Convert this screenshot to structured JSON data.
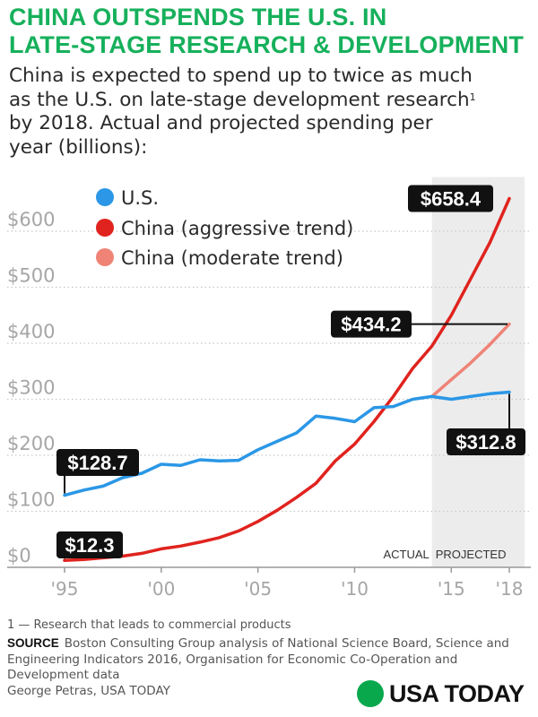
{
  "title_line1": "CHINA OUTSPENDS THE U.S. IN",
  "title_line2": "LATE-STAGE RESEARCH & DEVELOPMENT",
  "subtitle_line1": "China is expected to spend up to twice as much",
  "subtitle_line2": "as the U.S. on late-stage development research",
  "subtitle_sup": "1",
  "subtitle_line3": "by 2018. Actual and projected spending per",
  "subtitle_line4": "year (billions):",
  "chart_data": {
    "type": "line",
    "x": [
      1995,
      1996,
      1997,
      1998,
      1999,
      2000,
      2001,
      2002,
      2003,
      2004,
      2005,
      2006,
      2007,
      2008,
      2009,
      2010,
      2011,
      2012,
      2013,
      2014,
      2015,
      2016,
      2017,
      2018
    ],
    "xticks": [
      1995,
      2000,
      2005,
      2010,
      2015,
      2018
    ],
    "xtick_labels": [
      "'95",
      "'00",
      "'05",
      "'10",
      "'15",
      "'18"
    ],
    "yticks": [
      0,
      100,
      200,
      300,
      400,
      500,
      600
    ],
    "ytick_labels": [
      "$0",
      "$100",
      "$200",
      "$300",
      "$400",
      "$500",
      "$600"
    ],
    "ylim": [
      0,
      700
    ],
    "xlim": [
      1995,
      2018
    ],
    "projection_start": 2014,
    "region_labels": [
      "ACTUAL",
      "PROJECTED"
    ],
    "legend_position": "top-left",
    "grid": "dotted horizontal",
    "series": [
      {
        "name": "U.S.",
        "color": "#2b97e6",
        "x": [
          1995,
          1996,
          1997,
          1998,
          1999,
          2000,
          2001,
          2002,
          2003,
          2004,
          2005,
          2006,
          2007,
          2008,
          2009,
          2010,
          2011,
          2012,
          2013,
          2014,
          2015,
          2016,
          2017,
          2018
        ],
        "values": [
          128.7,
          138,
          145,
          160,
          168,
          184,
          182,
          192,
          190,
          191,
          210,
          225,
          240,
          270,
          266,
          260,
          285,
          287,
          300,
          305,
          300,
          305,
          310,
          312.8
        ]
      },
      {
        "name": "China (aggressive trend)",
        "color": "#e0231e",
        "x": [
          1995,
          1996,
          1997,
          1998,
          1999,
          2000,
          2001,
          2002,
          2003,
          2004,
          2005,
          2006,
          2007,
          2008,
          2009,
          2010,
          2011,
          2012,
          2013,
          2014,
          2015,
          2016,
          2017,
          2018
        ],
        "values": [
          12.3,
          14,
          17,
          20,
          25,
          33,
          38,
          45,
          53,
          65,
          82,
          102,
          125,
          150,
          190,
          220,
          260,
          305,
          355,
          395,
          450,
          515,
          580,
          658.4
        ]
      },
      {
        "name": "China (moderate trend)",
        "color": "#ef8376",
        "x": [
          2014,
          2015,
          2016,
          2017,
          2018
        ],
        "values": [
          305,
          335,
          365,
          398,
          434.2
        ]
      }
    ],
    "callouts": [
      {
        "text": "$658.4"
      },
      {
        "text": "$434.2"
      },
      {
        "text": "$312.8"
      },
      {
        "text": "$128.7"
      },
      {
        "text": "$12.3"
      }
    ]
  },
  "footnote": "1 — Research that leads to commercial products",
  "source_label": "SOURCE",
  "source_text": "Boston Consulting Group analysis of National Science Board, Science and Engineering Indicators 2016, Organisation for Economic Co-Operation and Development data",
  "credit": "George Petras, USA TODAY",
  "logo_text": "USA TODAY",
  "colors": {
    "title": "#16b05b",
    "us": "#2b97e6",
    "china_aggressive": "#e0231e",
    "china_moderate": "#ef8376",
    "callout_bg": "#111111",
    "logo_dot": "#09a84d"
  }
}
